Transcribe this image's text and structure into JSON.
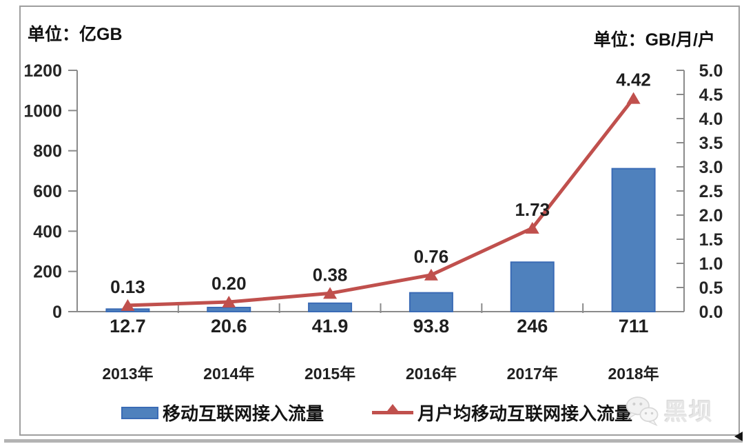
{
  "panel": {
    "unit_left": "单位：亿GB",
    "unit_right": "单位：GB/月/户"
  },
  "chart_data": {
    "type": "bar+line",
    "categories": [
      "2013年",
      "2014年",
      "2015年",
      "2016年",
      "2017年",
      "2018年"
    ],
    "series": [
      {
        "name": "移动互联网接入流量",
        "type": "bar",
        "axis": "left",
        "unit": "亿GB",
        "values": [
          12.7,
          20.6,
          41.9,
          93.8,
          246,
          711
        ],
        "value_labels": [
          "12.7",
          "20.6",
          "41.9",
          "93.8",
          "246",
          "711"
        ],
        "value_labels_position": "below-x-axis",
        "color": "#4F81BD",
        "border_color": "#3A6BB5"
      },
      {
        "name": "月户均移动互联网接入流量",
        "type": "line",
        "axis": "right",
        "unit": "GB/月/户",
        "values": [
          0.13,
          0.2,
          0.38,
          0.76,
          1.73,
          4.42
        ],
        "value_labels": [
          "0.13",
          "0.20",
          "0.38",
          "0.76",
          "1.73",
          "4.42"
        ],
        "value_labels_position": "above-point",
        "marker": "triangle-up",
        "color": "#C0504D"
      }
    ],
    "left_axis": {
      "title": "单位：亿GB",
      "min": 0,
      "max": 1200,
      "step": 200,
      "tick_labels": [
        "0",
        "200",
        "400",
        "600",
        "800",
        "1000",
        "1200"
      ]
    },
    "right_axis": {
      "title": "单位：GB/月/户",
      "min": 0,
      "max": 5,
      "step": 0.5,
      "tick_labels": [
        "0.0",
        "0.5",
        "1.0",
        "1.5",
        "2.0",
        "2.5",
        "3.0",
        "3.5",
        "4.0",
        "4.5",
        "5.0"
      ]
    },
    "grid": false,
    "legend_position": "bottom",
    "axis_color": "#8a8a8a"
  },
  "legend": {
    "items": [
      {
        "label": "移动互联网接入流量",
        "swatch": "bar",
        "color": "#4F81BD"
      },
      {
        "label": "月户均移动互联网接入流量",
        "swatch": "line-triangle",
        "color": "#C0504D"
      }
    ]
  },
  "watermark": {
    "brand": "黑坝",
    "icon": "wechat-icon"
  }
}
